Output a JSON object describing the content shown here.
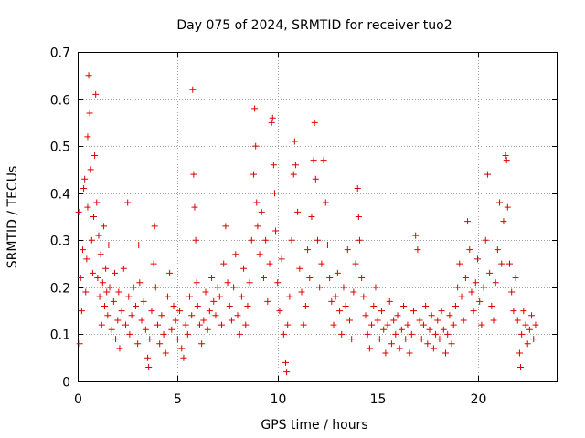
{
  "chart_data": {
    "type": "scatter",
    "title": "Day 075 of 2024, SRMTID for receiver tuo2",
    "xlabel": "GPS time / hours",
    "ylabel": "SRMTID / TECUs",
    "xlim": [
      0,
      24
    ],
    "ylim": [
      0,
      0.7
    ],
    "xticks": [
      0,
      5,
      10,
      15,
      20
    ],
    "xtick_labels": [
      "0",
      "5",
      "10",
      "15",
      "20"
    ],
    "yticks": [
      0,
      0.1,
      0.2,
      0.3,
      0.4,
      0.5,
      0.6,
      0.7
    ],
    "ytick_labels": [
      "0",
      "0.1",
      "0.2",
      "0.3",
      "0.4",
      "0.5",
      "0.6",
      "0.7"
    ],
    "grid": true,
    "marker": "+",
    "color": "#e00000",
    "series": [
      {
        "name": "SRMTID",
        "points": [
          [
            0.05,
            0.36
          ],
          [
            0.1,
            0.08
          ],
          [
            0.15,
            0.22
          ],
          [
            0.2,
            0.15
          ],
          [
            0.25,
            0.28
          ],
          [
            0.3,
            0.41
          ],
          [
            0.35,
            0.43
          ],
          [
            0.4,
            0.19
          ],
          [
            0.45,
            0.26
          ],
          [
            0.5,
            0.37
          ],
          [
            0.5,
            0.52
          ],
          [
            0.55,
            0.65
          ],
          [
            0.6,
            0.57
          ],
          [
            0.65,
            0.45
          ],
          [
            0.7,
            0.3
          ],
          [
            0.75,
            0.23
          ],
          [
            0.8,
            0.35
          ],
          [
            0.85,
            0.48
          ],
          [
            0.9,
            0.61
          ],
          [
            0.95,
            0.38
          ],
          [
            1.0,
            0.22
          ],
          [
            1.05,
            0.31
          ],
          [
            1.1,
            0.18
          ],
          [
            1.15,
            0.27
          ],
          [
            1.2,
            0.12
          ],
          [
            1.25,
            0.21
          ],
          [
            1.3,
            0.33
          ],
          [
            1.35,
            0.16
          ],
          [
            1.4,
            0.24
          ],
          [
            1.45,
            0.19
          ],
          [
            1.5,
            0.14
          ],
          [
            1.55,
            0.29
          ],
          [
            1.6,
            0.2
          ],
          [
            1.7,
            0.11
          ],
          [
            1.8,
            0.17
          ],
          [
            1.85,
            0.23
          ],
          [
            1.9,
            0.09
          ],
          [
            2.0,
            0.13
          ],
          [
            2.05,
            0.19
          ],
          [
            2.1,
            0.07
          ],
          [
            2.2,
            0.15
          ],
          [
            2.3,
            0.24
          ],
          [
            2.4,
            0.12
          ],
          [
            2.5,
            0.38
          ],
          [
            2.55,
            0.18
          ],
          [
            2.6,
            0.1
          ],
          [
            2.7,
            0.14
          ],
          [
            2.8,
            0.2
          ],
          [
            2.9,
            0.16
          ],
          [
            3.0,
            0.08
          ],
          [
            3.05,
            0.29
          ],
          [
            3.1,
            0.21
          ],
          [
            3.2,
            0.13
          ],
          [
            3.3,
            0.17
          ],
          [
            3.4,
            0.11
          ],
          [
            3.5,
            0.05
          ],
          [
            3.55,
            0.03
          ],
          [
            3.6,
            0.09
          ],
          [
            3.7,
            0.15
          ],
          [
            3.8,
            0.25
          ],
          [
            3.85,
            0.33
          ],
          [
            3.9,
            0.2
          ],
          [
            4.0,
            0.12
          ],
          [
            4.1,
            0.08
          ],
          [
            4.2,
            0.14
          ],
          [
            4.3,
            0.1
          ],
          [
            4.4,
            0.06
          ],
          [
            4.5,
            0.18
          ],
          [
            4.6,
            0.23
          ],
          [
            4.7,
            0.11
          ],
          [
            4.8,
            0.16
          ],
          [
            4.9,
            0.13
          ],
          [
            5.0,
            0.09
          ],
          [
            5.1,
            0.15
          ],
          [
            5.2,
            0.07
          ],
          [
            5.3,
            0.05
          ],
          [
            5.4,
            0.12
          ],
          [
            5.5,
            0.1
          ],
          [
            5.6,
            0.18
          ],
          [
            5.7,
            0.14
          ],
          [
            5.75,
            0.62
          ],
          [
            5.8,
            0.44
          ],
          [
            5.85,
            0.37
          ],
          [
            5.9,
            0.3
          ],
          [
            5.95,
            0.21
          ],
          [
            6.0,
            0.16
          ],
          [
            6.1,
            0.12
          ],
          [
            6.2,
            0.08
          ],
          [
            6.3,
            0.13
          ],
          [
            6.4,
            0.19
          ],
          [
            6.5,
            0.11
          ],
          [
            6.6,
            0.15
          ],
          [
            6.7,
            0.22
          ],
          [
            6.8,
            0.17
          ],
          [
            6.9,
            0.14
          ],
          [
            7.0,
            0.2
          ],
          [
            7.1,
            0.18
          ],
          [
            7.2,
            0.12
          ],
          [
            7.3,
            0.25
          ],
          [
            7.4,
            0.33
          ],
          [
            7.5,
            0.21
          ],
          [
            7.6,
            0.16
          ],
          [
            7.7,
            0.13
          ],
          [
            7.8,
            0.2
          ],
          [
            7.9,
            0.27
          ],
          [
            8.0,
            0.14
          ],
          [
            8.1,
            0.1
          ],
          [
            8.2,
            0.18
          ],
          [
            8.3,
            0.24
          ],
          [
            8.4,
            0.12
          ],
          [
            8.5,
            0.16
          ],
          [
            8.6,
            0.21
          ],
          [
            8.7,
            0.3
          ],
          [
            8.8,
            0.44
          ],
          [
            8.85,
            0.58
          ],
          [
            8.9,
            0.5
          ],
          [
            8.95,
            0.38
          ],
          [
            9.0,
            0.33
          ],
          [
            9.1,
            0.27
          ],
          [
            9.2,
            0.36
          ],
          [
            9.3,
            0.22
          ],
          [
            9.4,
            0.3
          ],
          [
            9.5,
            0.17
          ],
          [
            9.6,
            0.25
          ],
          [
            9.7,
            0.55
          ],
          [
            9.75,
            0.56
          ],
          [
            9.8,
            0.46
          ],
          [
            9.85,
            0.4
          ],
          [
            9.9,
            0.32
          ],
          [
            10.0,
            0.21
          ],
          [
            10.1,
            0.15
          ],
          [
            10.2,
            0.26
          ],
          [
            10.3,
            0.1
          ],
          [
            10.4,
            0.04
          ],
          [
            10.45,
            0.02
          ],
          [
            10.5,
            0.12
          ],
          [
            10.6,
            0.18
          ],
          [
            10.7,
            0.3
          ],
          [
            10.8,
            0.44
          ],
          [
            10.85,
            0.51
          ],
          [
            10.9,
            0.46
          ],
          [
            11.0,
            0.36
          ],
          [
            11.1,
            0.24
          ],
          [
            11.2,
            0.19
          ],
          [
            11.3,
            0.12
          ],
          [
            11.4,
            0.16
          ],
          [
            11.5,
            0.28
          ],
          [
            11.6,
            0.22
          ],
          [
            11.7,
            0.35
          ],
          [
            11.8,
            0.47
          ],
          [
            11.85,
            0.55
          ],
          [
            11.9,
            0.43
          ],
          [
            12.0,
            0.3
          ],
          [
            12.1,
            0.2
          ],
          [
            12.2,
            0.25
          ],
          [
            12.3,
            0.47
          ],
          [
            12.4,
            0.38
          ],
          [
            12.5,
            0.29
          ],
          [
            12.6,
            0.22
          ],
          [
            12.7,
            0.17
          ],
          [
            12.8,
            0.12
          ],
          [
            12.9,
            0.18
          ],
          [
            13.0,
            0.23
          ],
          [
            13.1,
            0.15
          ],
          [
            13.2,
            0.1
          ],
          [
            13.3,
            0.2
          ],
          [
            13.4,
            0.16
          ],
          [
            13.5,
            0.28
          ],
          [
            13.6,
            0.13
          ],
          [
            13.7,
            0.09
          ],
          [
            13.8,
            0.19
          ],
          [
            13.9,
            0.25
          ],
          [
            14.0,
            0.41
          ],
          [
            14.05,
            0.35
          ],
          [
            14.1,
            0.3
          ],
          [
            14.2,
            0.22
          ],
          [
            14.3,
            0.18
          ],
          [
            14.4,
            0.14
          ],
          [
            14.5,
            0.1
          ],
          [
            14.6,
            0.07
          ],
          [
            14.7,
            0.12
          ],
          [
            14.8,
            0.16
          ],
          [
            14.9,
            0.2
          ],
          [
            15.0,
            0.13
          ],
          [
            15.1,
            0.09
          ],
          [
            15.2,
            0.15
          ],
          [
            15.3,
            0.11
          ],
          [
            15.4,
            0.06
          ],
          [
            15.5,
            0.12
          ],
          [
            15.6,
            0.17
          ],
          [
            15.7,
            0.08
          ],
          [
            15.8,
            0.13
          ],
          [
            15.9,
            0.1
          ],
          [
            16.0,
            0.14
          ],
          [
            16.1,
            0.07
          ],
          [
            16.2,
            0.11
          ],
          [
            16.3,
            0.16
          ],
          [
            16.4,
            0.09
          ],
          [
            16.5,
            0.12
          ],
          [
            16.6,
            0.06
          ],
          [
            16.7,
            0.1
          ],
          [
            16.8,
            0.15
          ],
          [
            16.9,
            0.31
          ],
          [
            17.0,
            0.28
          ],
          [
            17.1,
            0.13
          ],
          [
            17.2,
            0.09
          ],
          [
            17.3,
            0.12
          ],
          [
            17.4,
            0.16
          ],
          [
            17.5,
            0.08
          ],
          [
            17.6,
            0.11
          ],
          [
            17.7,
            0.14
          ],
          [
            17.8,
            0.07
          ],
          [
            17.9,
            0.1
          ],
          [
            18.0,
            0.13
          ],
          [
            18.1,
            0.09
          ],
          [
            18.2,
            0.15
          ],
          [
            18.3,
            0.11
          ],
          [
            18.4,
            0.06
          ],
          [
            18.5,
            0.1
          ],
          [
            18.6,
            0.14
          ],
          [
            18.7,
            0.08
          ],
          [
            18.8,
            0.12
          ],
          [
            18.9,
            0.16
          ],
          [
            19.0,
            0.2
          ],
          [
            19.1,
            0.25
          ],
          [
            19.2,
            0.18
          ],
          [
            19.3,
            0.13
          ],
          [
            19.4,
            0.22
          ],
          [
            19.5,
            0.34
          ],
          [
            19.6,
            0.28
          ],
          [
            19.7,
            0.19
          ],
          [
            19.8,
            0.15
          ],
          [
            19.9,
            0.21
          ],
          [
            20.0,
            0.26
          ],
          [
            20.1,
            0.17
          ],
          [
            20.2,
            0.12
          ],
          [
            20.3,
            0.2
          ],
          [
            20.4,
            0.3
          ],
          [
            20.5,
            0.44
          ],
          [
            20.6,
            0.23
          ],
          [
            20.7,
            0.16
          ],
          [
            20.8,
            0.13
          ],
          [
            20.9,
            0.21
          ],
          [
            21.0,
            0.28
          ],
          [
            21.1,
            0.38
          ],
          [
            21.2,
            0.25
          ],
          [
            21.3,
            0.34
          ],
          [
            21.4,
            0.48
          ],
          [
            21.45,
            0.47
          ],
          [
            21.5,
            0.37
          ],
          [
            21.6,
            0.25
          ],
          [
            21.7,
            0.19
          ],
          [
            21.8,
            0.15
          ],
          [
            21.9,
            0.22
          ],
          [
            22.0,
            0.13
          ],
          [
            22.1,
            0.06
          ],
          [
            22.15,
            0.03
          ],
          [
            22.2,
            0.1
          ],
          [
            22.3,
            0.15
          ],
          [
            22.4,
            0.12
          ],
          [
            22.5,
            0.08
          ],
          [
            22.6,
            0.11
          ],
          [
            22.7,
            0.14
          ],
          [
            22.8,
            0.09
          ],
          [
            22.9,
            0.12
          ]
        ]
      }
    ]
  }
}
